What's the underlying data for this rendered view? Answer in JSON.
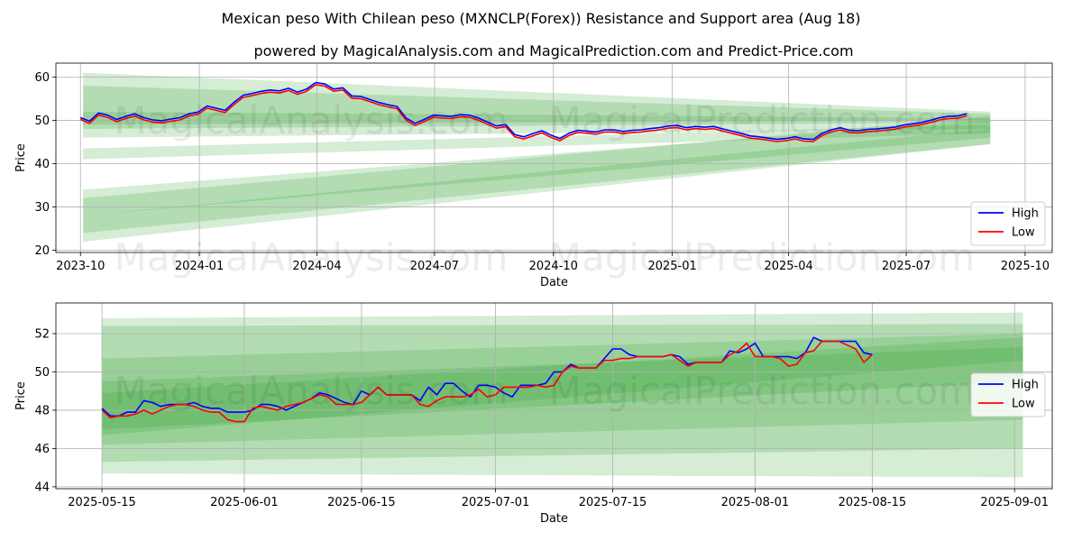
{
  "title": "Mexican peso With Chilean peso (MXNCLP(Forex)) Resistance and Support area (Aug 18)",
  "subtitle": "powered by MagicalAnalysis.com and MagicalPrediction.com and Predict-Price.com",
  "watermarks": [
    "MagicalAnalysis.com",
    "MagicalPrediction.com"
  ],
  "colors": {
    "high": "#0000ff",
    "low": "#ff0000",
    "band": "#2ca02c",
    "grid": "#b0b0b0"
  },
  "chart_data": [
    {
      "type": "line",
      "xlabel": "Date",
      "ylabel": "Price",
      "xlim": [
        -19,
        752
      ],
      "ylim": [
        19.5,
        63.2
      ],
      "xticks": [
        {
          "v": 0,
          "label": "2023-10"
        },
        {
          "v": 92,
          "label": "2024-01"
        },
        {
          "v": 183,
          "label": "2024-04"
        },
        {
          "v": 274,
          "label": "2024-07"
        },
        {
          "v": 366,
          "label": "2024-10"
        },
        {
          "v": 458,
          "label": "2025-01"
        },
        {
          "v": 548,
          "label": "2025-04"
        },
        {
          "v": 639,
          "label": "2025-07"
        },
        {
          "v": 731,
          "label": "2025-10"
        }
      ],
      "yticks": [
        20,
        30,
        40,
        50,
        60
      ],
      "legend": {
        "position": "lower-right",
        "entries": [
          "High",
          "Low"
        ]
      },
      "grid": true,
      "bands": [
        {
          "x0": 2,
          "x1": 704,
          "top0": 61.0,
          "bot0": 49.0,
          "top1": 52.0,
          "bot1": 50.0
        },
        {
          "x0": 2,
          "x1": 704,
          "top0": 58.0,
          "bot0": 48.0,
          "top1": 51.5,
          "bot1": 49.5
        },
        {
          "x0": 2,
          "x1": 704,
          "top0": 52.0,
          "bot0": 46.0,
          "top1": 50.5,
          "bot1": 48.0
        },
        {
          "x0": 2,
          "x1": 704,
          "top0": 43.5,
          "bot0": 41.0,
          "top1": 49.0,
          "bot1": 47.0
        },
        {
          "x0": 2,
          "x1": 704,
          "top0": 32.0,
          "bot0": 24.0,
          "top1": 51.0,
          "bot1": 44.5
        },
        {
          "x0": 2,
          "x1": 704,
          "top0": 34.0,
          "bot0": 28.0,
          "top1": 50.0,
          "bot1": 46.0
        },
        {
          "x0": 2,
          "x1": 704,
          "top0": 28.0,
          "bot0": 22.0,
          "top1": 48.0,
          "bot1": 44.5
        }
      ],
      "x": [
        0,
        7,
        14,
        21,
        28,
        35,
        42,
        49,
        56,
        63,
        70,
        77,
        84,
        91,
        98,
        105,
        112,
        119,
        126,
        133,
        140,
        147,
        154,
        161,
        168,
        175,
        182,
        189,
        196,
        203,
        210,
        217,
        224,
        231,
        238,
        245,
        252,
        259,
        266,
        273,
        280,
        287,
        294,
        301,
        308,
        315,
        322,
        329,
        336,
        343,
        350,
        357,
        364,
        371,
        378,
        385,
        392,
        399,
        406,
        413,
        420,
        427,
        434,
        441,
        448,
        455,
        462,
        469,
        476,
        483,
        490,
        497,
        504,
        511,
        518,
        525,
        532,
        539,
        546,
        553,
        560,
        567,
        574,
        581,
        588,
        595,
        602,
        609,
        616,
        623,
        630,
        637,
        644,
        651,
        658,
        665,
        672,
        679,
        686
      ],
      "series": [
        {
          "name": "High",
          "values": [
            50.6,
            49.8,
            51.7,
            51.2,
            50.2,
            50.9,
            51.5,
            50.6,
            50.1,
            49.9,
            50.3,
            50.6,
            51.5,
            51.9,
            53.3,
            52.8,
            52.3,
            54.2,
            55.8,
            56.2,
            56.7,
            57.0,
            56.8,
            57.4,
            56.5,
            57.2,
            58.7,
            58.4,
            57.2,
            57.5,
            55.6,
            55.5,
            54.8,
            54.1,
            53.6,
            53.2,
            50.5,
            49.3,
            50.2,
            51.2,
            51.0,
            50.9,
            51.3,
            51.2,
            50.5,
            49.6,
            48.7,
            49.0,
            46.7,
            46.2,
            46.9,
            47.6,
            46.6,
            45.8,
            47.0,
            47.7,
            47.5,
            47.3,
            47.8,
            47.8,
            47.4,
            47.7,
            47.8,
            48.1,
            48.3,
            48.7,
            48.8,
            48.3,
            48.6,
            48.4,
            48.6,
            48.0,
            47.5,
            47.0,
            46.4,
            46.2,
            45.9,
            45.6,
            45.8,
            46.2,
            45.7,
            45.6,
            47.0,
            47.8,
            48.3,
            47.7,
            47.6,
            47.9,
            48.0,
            48.2,
            48.4,
            48.9,
            49.2,
            49.5,
            50.0,
            50.6,
            50.9,
            51.0,
            51.5
          ]
        },
        {
          "name": "Low",
          "values": [
            50.2,
            49.3,
            51.2,
            50.7,
            49.7,
            50.4,
            51.0,
            50.1,
            49.6,
            49.4,
            49.8,
            50.1,
            51.0,
            51.4,
            52.8,
            52.3,
            51.8,
            53.7,
            55.3,
            55.7,
            56.2,
            56.5,
            56.3,
            56.9,
            56.0,
            56.7,
            58.2,
            57.9,
            56.7,
            57.0,
            55.1,
            55.0,
            54.3,
            53.6,
            53.1,
            52.7,
            50.0,
            48.8,
            49.7,
            50.7,
            50.5,
            50.4,
            50.8,
            50.7,
            50.0,
            49.1,
            48.2,
            48.5,
            46.2,
            45.7,
            46.4,
            47.1,
            46.1,
            45.3,
            46.5,
            47.2,
            47.0,
            46.8,
            47.3,
            47.3,
            46.9,
            47.2,
            47.3,
            47.6,
            47.8,
            48.2,
            48.3,
            47.8,
            48.1,
            47.9,
            48.1,
            47.5,
            47.0,
            46.5,
            45.9,
            45.7,
            45.4,
            45.1,
            45.3,
            45.7,
            45.2,
            45.1,
            46.5,
            47.3,
            47.8,
            47.2,
            47.1,
            47.4,
            47.5,
            47.7,
            47.9,
            48.4,
            48.7,
            49.0,
            49.5,
            50.1,
            50.4,
            50.5,
            51.0
          ]
        }
      ]
    },
    {
      "type": "line",
      "xlabel": "Date",
      "ylabel": "Price",
      "xlim": [
        -5.5,
        113.5
      ],
      "ylim": [
        43.9,
        53.6
      ],
      "xticks": [
        {
          "v": 0,
          "label": "2025-05-15"
        },
        {
          "v": 17,
          "label": "2025-06-01"
        },
        {
          "v": 31,
          "label": "2025-06-15"
        },
        {
          "v": 47,
          "label": "2025-07-01"
        },
        {
          "v": 61,
          "label": "2025-07-15"
        },
        {
          "v": 78,
          "label": "2025-08-01"
        },
        {
          "v": 92,
          "label": "2025-08-15"
        },
        {
          "v": 109,
          "label": "2025-09-01"
        }
      ],
      "yticks": [
        44,
        46,
        48,
        50,
        52
      ],
      "legend": {
        "position": "center-right",
        "entries": [
          "High",
          "Low"
        ]
      },
      "grid": true,
      "bands": [
        {
          "x0": 0,
          "x1": 110,
          "top0": 52.8,
          "bot0": 44.7,
          "top1": 53.1,
          "bot1": 44.5
        },
        {
          "x0": 0,
          "x1": 110,
          "top0": 52.4,
          "bot0": 45.3,
          "top1": 52.5,
          "bot1": 46.0
        },
        {
          "x0": 0,
          "x1": 110,
          "top0": 50.7,
          "bot0": 46.2,
          "top1": 52.0,
          "bot1": 47.5
        },
        {
          "x0": 0,
          "x1": 110,
          "top0": 49.5,
          "bot0": 47.0,
          "top1": 51.3,
          "bot1": 49.5
        },
        {
          "x0": 0,
          "x1": 110,
          "top0": 48.9,
          "bot0": 46.7,
          "top1": 51.8,
          "bot1": 50.6
        }
      ],
      "x": [
        0,
        1,
        2,
        3,
        4,
        5,
        6,
        7,
        8,
        9,
        10,
        11,
        12,
        13,
        14,
        15,
        16,
        17,
        18,
        19,
        20,
        21,
        22,
        23,
        24,
        25,
        26,
        27,
        28,
        29,
        30,
        31,
        32,
        33,
        34,
        35,
        36,
        37,
        38,
        39,
        40,
        41,
        42,
        43,
        44,
        45,
        46,
        47,
        48,
        49,
        50,
        51,
        52,
        53,
        54,
        55,
        56,
        57,
        58,
        59,
        60,
        61,
        62,
        63,
        64,
        65,
        66,
        67,
        68,
        69,
        70,
        71,
        72,
        73,
        74,
        75,
        76,
        77,
        78,
        79,
        80,
        81,
        82,
        83,
        84,
        85,
        86,
        87,
        88,
        89,
        90,
        91,
        92
      ],
      "series": [
        {
          "name": "High",
          "values": [
            48.1,
            47.7,
            47.7,
            47.9,
            47.9,
            48.5,
            48.4,
            48.2,
            48.3,
            48.3,
            48.3,
            48.4,
            48.2,
            48.1,
            48.1,
            47.9,
            47.9,
            47.9,
            48.0,
            48.3,
            48.3,
            48.2,
            48.0,
            48.2,
            48.4,
            48.6,
            48.9,
            48.8,
            48.6,
            48.4,
            48.3,
            49.0,
            48.8,
            49.2,
            48.8,
            48.8,
            48.8,
            48.8,
            48.5,
            49.2,
            48.8,
            49.4,
            49.4,
            49.0,
            48.7,
            49.3,
            49.3,
            49.2,
            48.9,
            48.7,
            49.3,
            49.3,
            49.3,
            49.4,
            50.0,
            50.0,
            50.4,
            50.2,
            50.2,
            50.2,
            50.7,
            51.2,
            51.2,
            50.9,
            50.8,
            50.8,
            50.8,
            50.8,
            50.9,
            50.8,
            50.4,
            50.5,
            50.5,
            50.5,
            50.5,
            51.1,
            51.0,
            51.2,
            51.5,
            50.8,
            50.8,
            50.8,
            50.8,
            50.7,
            51.0,
            51.8,
            51.6,
            51.6,
            51.6,
            51.6,
            51.6,
            51.0,
            50.9
          ]
        },
        {
          "name": "Low",
          "values": [
            48.0,
            47.6,
            47.7,
            47.7,
            47.8,
            48.0,
            47.8,
            48.0,
            48.2,
            48.3,
            48.3,
            48.2,
            48.0,
            47.9,
            47.9,
            47.5,
            47.4,
            47.4,
            48.1,
            48.2,
            48.1,
            48.0,
            48.2,
            48.3,
            48.4,
            48.6,
            48.8,
            48.7,
            48.3,
            48.3,
            48.3,
            48.4,
            48.8,
            49.2,
            48.8,
            48.8,
            48.8,
            48.8,
            48.3,
            48.2,
            48.5,
            48.7,
            48.7,
            48.7,
            48.8,
            49.1,
            48.7,
            48.8,
            49.2,
            49.2,
            49.2,
            49.2,
            49.3,
            49.2,
            49.3,
            50.0,
            50.3,
            50.2,
            50.2,
            50.2,
            50.6,
            50.6,
            50.7,
            50.7,
            50.8,
            50.8,
            50.8,
            50.8,
            50.9,
            50.6,
            50.3,
            50.5,
            50.5,
            50.5,
            50.5,
            50.9,
            51.1,
            51.5,
            50.8,
            50.8,
            50.8,
            50.7,
            50.3,
            50.4,
            51.0,
            51.1,
            51.6,
            51.6,
            51.6,
            51.4,
            51.2,
            50.5,
            50.9
          ]
        }
      ]
    }
  ]
}
